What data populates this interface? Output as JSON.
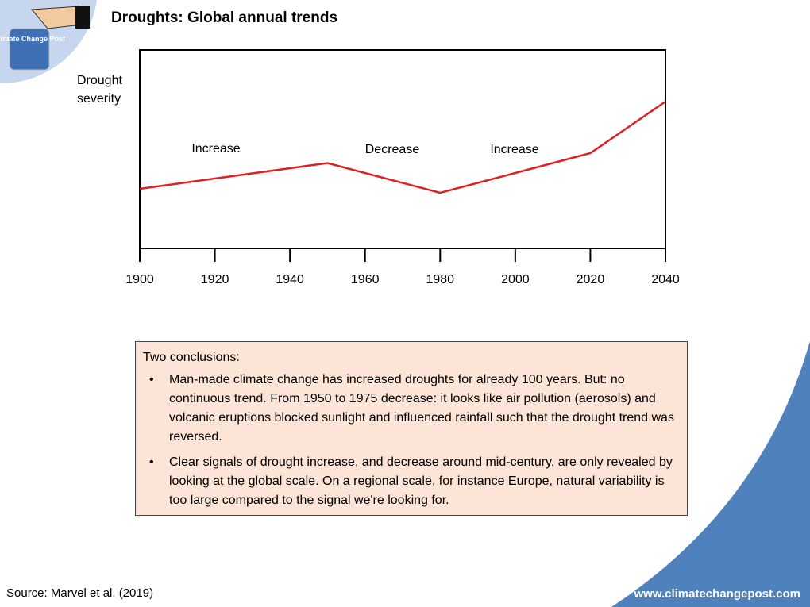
{
  "chart_data": {
    "type": "line",
    "title": "Droughts: Global annual trends",
    "y_label": "Drought severity",
    "x": [
      1900,
      1950,
      1980,
      2020,
      2040
    ],
    "values": [
      30,
      43,
      28,
      48,
      74
    ],
    "color": "#e02020",
    "xlim": [
      1900,
      2040
    ],
    "xticks": [
      1900,
      1920,
      1940,
      1960,
      1980,
      2000,
      2020,
      2040
    ],
    "ylim": [
      0,
      100
    ],
    "annotations": [
      "Increase",
      "Decrease",
      "Increase"
    ]
  },
  "logo": "Climate Change Post",
  "conclusions": {
    "heading": "Two conclusions:",
    "bullets": [
      "Man-made climate change has increased droughts for already 100 years. But: no continuous trend. From 1950 to 1975 decrease: it looks like air pollution (aerosols) and volcanic eruptions blocked sunlight and influenced rainfall such that the drought trend was reversed.",
      "Clear signals of drought increase, and decrease around mid-century, are only revealed by looking at the global scale. On a regional scale, for instance Europe, natural variability is too large compared to the signal we're looking for."
    ]
  },
  "source": "Source: Marvel et al. (2019)",
  "website": "www.climatechangepost.com"
}
